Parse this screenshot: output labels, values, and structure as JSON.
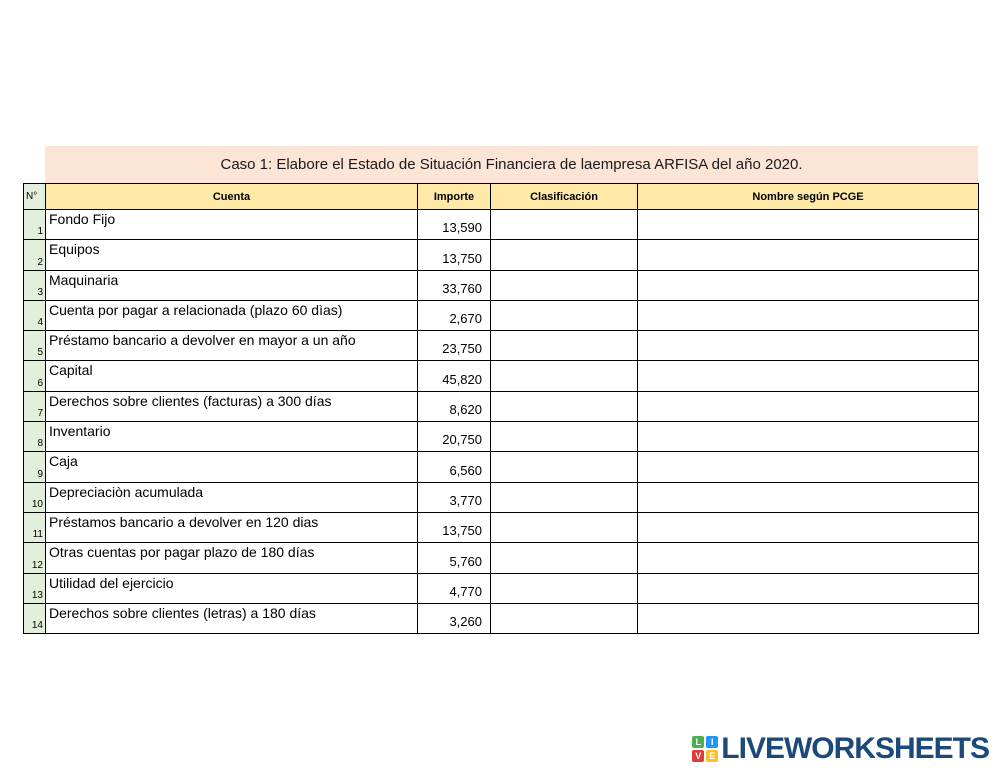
{
  "title": "Caso 1: Elabore el Estado de Situación Financiera de laempresa ARFISA del año 2020.",
  "table": {
    "headers": {
      "num": "N°",
      "cuenta": "Cuenta",
      "importe": "Importe",
      "clasificacion": "Clasificación",
      "nombre": "Nombre según PCGE"
    },
    "rows": [
      {
        "num": "1",
        "cuenta": "Fondo Fijo",
        "importe": "13,590",
        "clasificacion": "",
        "nombre": ""
      },
      {
        "num": "2",
        "cuenta": "Equipos",
        "importe": "13,750",
        "clasificacion": "",
        "nombre": ""
      },
      {
        "num": "3",
        "cuenta": "Maquinaria",
        "importe": "33,760",
        "clasificacion": "",
        "nombre": ""
      },
      {
        "num": "4",
        "cuenta": "Cuenta por pagar a relacionada (plazo 60 dìas)",
        "importe": "2,670",
        "clasificacion": "",
        "nombre": ""
      },
      {
        "num": "5",
        "cuenta": "Préstamo bancario a devolver en mayor a un año",
        "importe": "23,750",
        "clasificacion": "",
        "nombre": ""
      },
      {
        "num": "6",
        "cuenta": "Capital",
        "importe": "45,820",
        "clasificacion": "",
        "nombre": ""
      },
      {
        "num": "7",
        "cuenta": "Derechos sobre clientes (facturas) a 300 días",
        "importe": "8,620",
        "clasificacion": "",
        "nombre": ""
      },
      {
        "num": "8",
        "cuenta": "Inventario",
        "importe": "20,750",
        "clasificacion": "",
        "nombre": ""
      },
      {
        "num": "9",
        "cuenta": "Caja",
        "importe": "6,560",
        "clasificacion": "",
        "nombre": ""
      },
      {
        "num": "10",
        "cuenta": "Depreciaciòn acumulada",
        "importe": "3,770",
        "clasificacion": "",
        "nombre": ""
      },
      {
        "num": "11",
        "cuenta": "Préstamos bancario a devolver en 120 dias",
        "importe": "13,750",
        "clasificacion": "",
        "nombre": ""
      },
      {
        "num": "12",
        "cuenta": "Otras cuentas por pagar plazo de 180 días",
        "importe": "5,760",
        "clasificacion": "",
        "nombre": ""
      },
      {
        "num": "13",
        "cuenta": "Utilidad del ejercicio",
        "importe": "4,770",
        "clasificacion": "",
        "nombre": ""
      },
      {
        "num": "14",
        "cuenta": "Derechos sobre clientes (letras) a 180 días",
        "importe": "3,260",
        "clasificacion": "",
        "nombre": ""
      }
    ]
  },
  "footer": {
    "logo_text": "LIVEWORKSHEETS",
    "logo_squares": [
      {
        "letter": "L",
        "color": "#4caf50"
      },
      {
        "letter": "I",
        "color": "#2196f3"
      },
      {
        "letter": "V",
        "color": "#e53935"
      },
      {
        "letter": "E",
        "color": "#fbc02d"
      }
    ]
  },
  "colors": {
    "peach": "#fce4d6",
    "headerYellow": "#ffe9a9",
    "numGreen": "#e2efda",
    "logoNavy": "#1b4a7a"
  }
}
